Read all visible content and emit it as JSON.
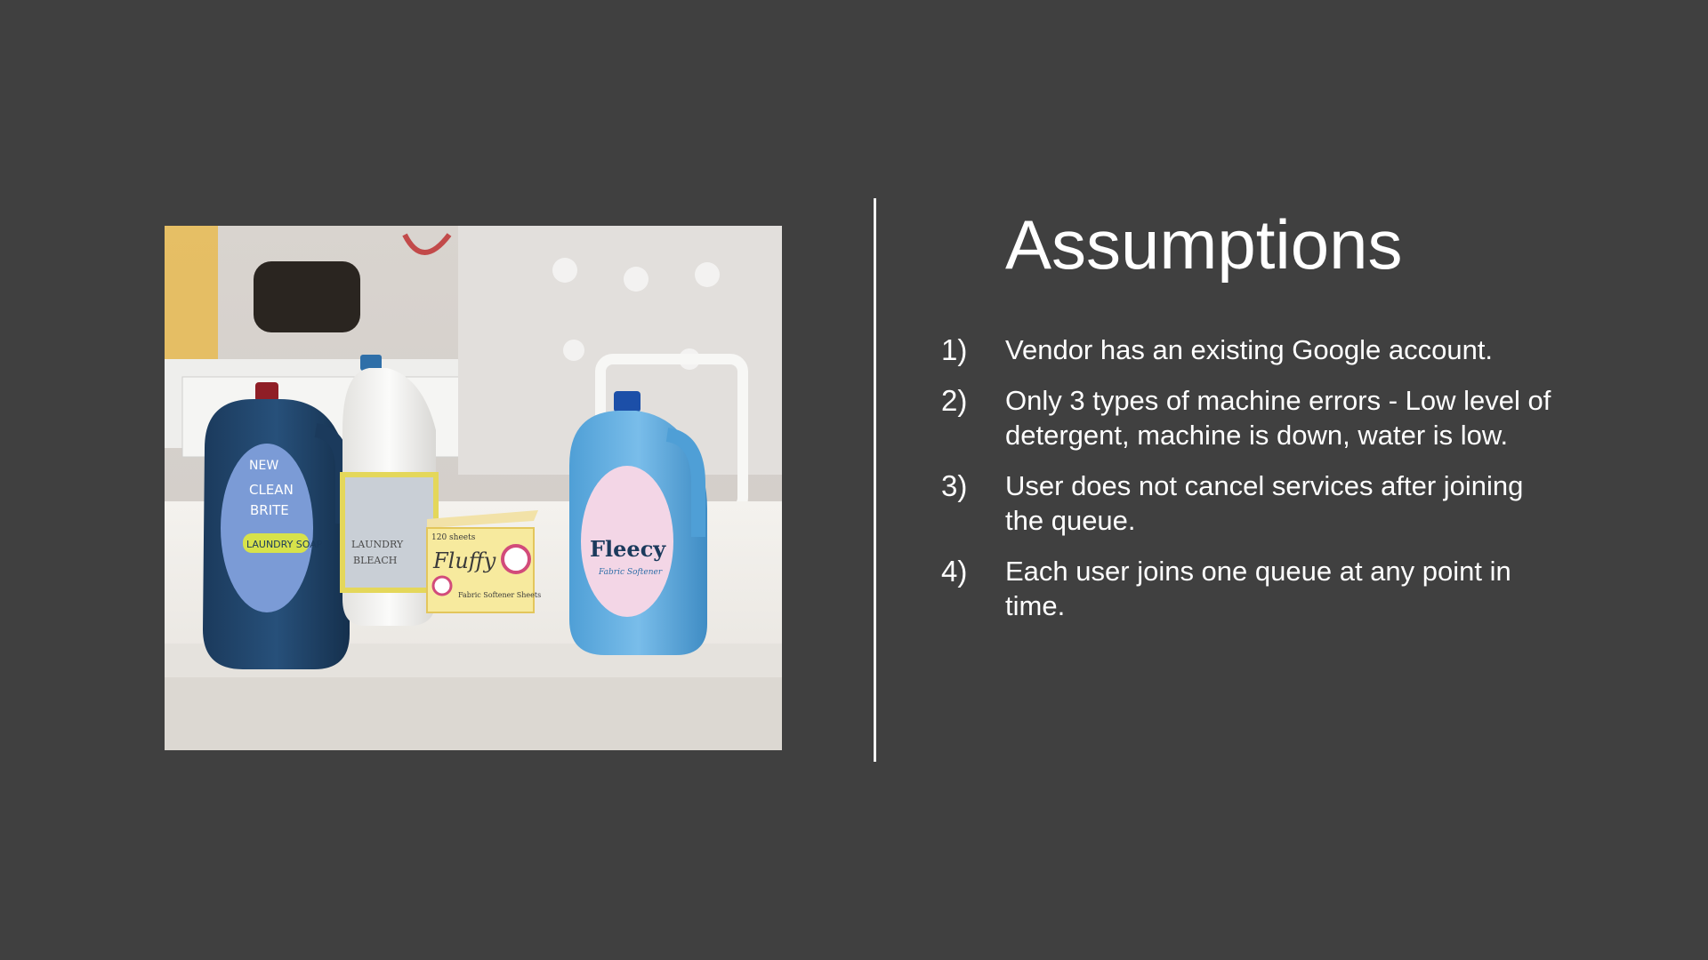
{
  "slide": {
    "title": "Assumptions",
    "background_color": "#404040",
    "text_color": "#ffffff",
    "assumptions": [
      {
        "number": "1)",
        "text": "Vendor has an existing Google account."
      },
      {
        "number": "2)",
        "text": "Only 3 types of machine errors - Low level of detergent, machine is down, water is low."
      },
      {
        "number": "3)",
        "text": "User does not cancel services after joining the queue."
      },
      {
        "number": "4)",
        "text": "Each user joins one queue at any point in time."
      }
    ]
  },
  "photo": {
    "description_icon": "laundry-products-photo",
    "product_labels": {
      "bottle1_new": "NEW",
      "bottle1_line1": "CLEAN",
      "bottle1_line2": "BRITE",
      "bottle1_line3": "LAUNDRY SOAP",
      "bottle2_line1": "LAUNDRY",
      "bottle2_line2": "BLEACH",
      "box_count": "120 sheets",
      "box_brand": "Fluffy",
      "box_sub": "Fabric Softener Sheets",
      "bottle3_brand": "Fleecy",
      "bottle3_sub": "Fabric Softener"
    }
  }
}
